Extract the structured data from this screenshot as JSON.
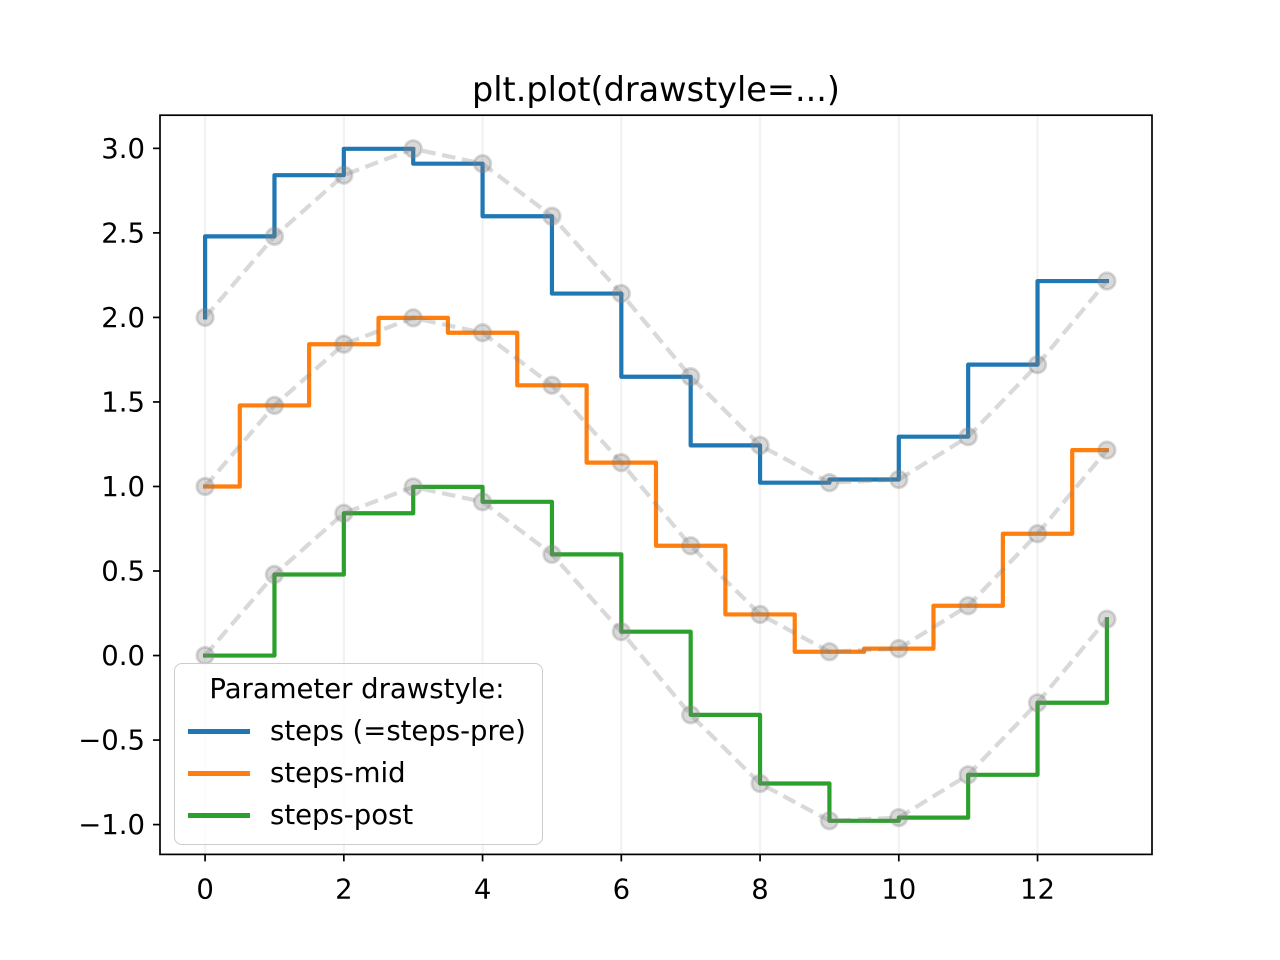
{
  "chart_data": {
    "type": "line",
    "title": "plt.plot(drawstyle=...)",
    "x": [
      0,
      1,
      2,
      3,
      4,
      5,
      6,
      7,
      8,
      9,
      10,
      11,
      12,
      13
    ],
    "series": [
      {
        "label": "steps (=steps-pre)",
        "drawstyle": "steps-pre",
        "color": "#1f77b4",
        "y": [
          2.0,
          2.4794,
          2.8415,
          2.9975,
          2.9093,
          2.5985,
          2.1411,
          1.6492,
          1.2432,
          1.0225,
          1.0411,
          1.2945,
          1.7206,
          2.2151
        ]
      },
      {
        "label": "steps-mid",
        "drawstyle": "steps-mid",
        "color": "#ff7f0e",
        "y": [
          1.0,
          1.4794,
          1.8415,
          1.9975,
          1.9093,
          1.5985,
          1.1411,
          0.6492,
          0.2432,
          0.0225,
          0.0411,
          0.2945,
          0.7206,
          1.2151
        ]
      },
      {
        "label": "steps-post",
        "drawstyle": "steps-post",
        "color": "#2ca02c",
        "y": [
          0.0,
          0.4794,
          0.8415,
          0.9975,
          0.9093,
          0.5985,
          0.1411,
          -0.3508,
          -0.7568,
          -0.9775,
          -0.9589,
          -0.7055,
          -0.2794,
          0.2151
        ]
      }
    ],
    "reference_line": {
      "style": "dashed",
      "marker": "o",
      "color": "#808080",
      "alpha": 0.3
    },
    "xticks": [
      0,
      2,
      4,
      6,
      8,
      10,
      12
    ],
    "xtick_labels": [
      "0",
      "2",
      "4",
      "6",
      "8",
      "10",
      "12"
    ],
    "yticks": [
      3.0,
      2.5,
      2.0,
      1.5,
      1.0,
      0.5,
      0.0,
      -0.5,
      -1.0
    ],
    "ytick_labels": [
      "3.0",
      "2.5",
      "2.0",
      "1.5",
      "1.0",
      "0.5",
      "0.0",
      "−0.5",
      "−1.0"
    ],
    "xlim": [
      -0.65,
      13.65
    ],
    "ylim": [
      -1.1763,
      3.1962
    ],
    "xlabel": "",
    "ylabel": "",
    "grid": {
      "axis": "x",
      "color": "#f2f2f2"
    },
    "axes_color": "#000000",
    "legend": {
      "title": "Parameter drawstyle:",
      "position": "lower-left",
      "entries": [
        "steps (=steps-pre)",
        "steps-mid",
        "steps-post"
      ]
    }
  }
}
